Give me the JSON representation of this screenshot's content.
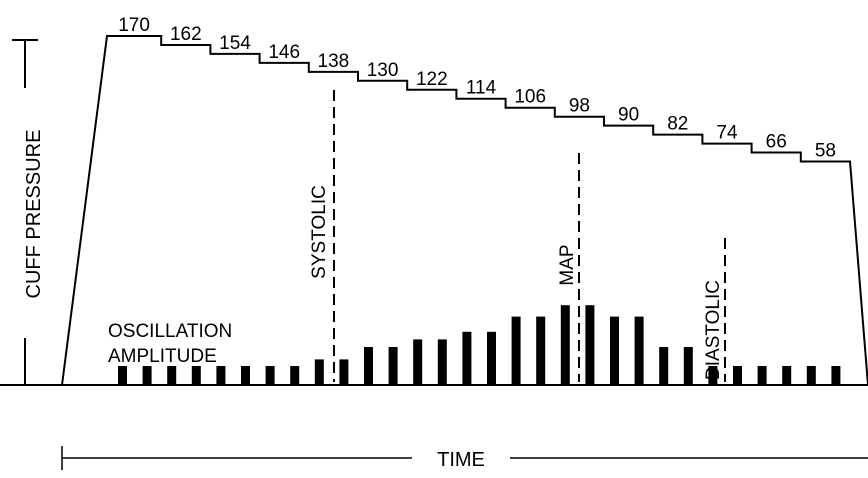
{
  "diagram": {
    "y_axis_label": "CUFF PRESSURE",
    "x_axis_label": "TIME",
    "oscillation_label_line1": "OSCILLATION",
    "oscillation_label_line2": "AMPLITUDE",
    "systolic_label": "SYSTOLIC",
    "map_label": "MAP",
    "diastolic_label": "DIASTOLIC",
    "pressure_steps": [
      "170",
      "162",
      "154",
      "146",
      "138",
      "130",
      "122",
      "114",
      "106",
      "98",
      "90",
      "82",
      "74",
      "66",
      "58"
    ],
    "oscillation_amplitudes": [
      1,
      1,
      1,
      1,
      1,
      1,
      1,
      1,
      1.35,
      1.35,
      2,
      2,
      2.4,
      2.4,
      2.8,
      2.8,
      3.6,
      3.6,
      4.2,
      4.2,
      3.6,
      3.6,
      2,
      2,
      1,
      1,
      1,
      1,
      1,
      1
    ]
  }
}
